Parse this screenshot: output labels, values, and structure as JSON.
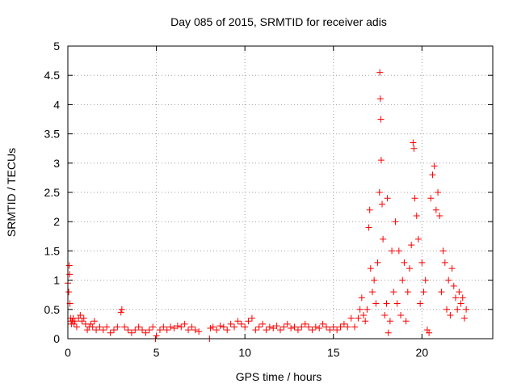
{
  "chart_data": {
    "type": "scatter",
    "title": "Day 085 of 2015, SRMTID for receiver adis",
    "xlabel": "GPS time / hours",
    "ylabel": "SRMTID / TECUs",
    "xlim": [
      0,
      24
    ],
    "ylim": [
      0,
      5
    ],
    "xticks": [
      0,
      5,
      10,
      15,
      20
    ],
    "xtick_labels": [
      "0",
      "5",
      "10",
      "15",
      "20"
    ],
    "yticks": [
      0,
      0.5,
      1,
      1.5,
      2,
      2.5,
      3,
      3.5,
      4,
      4.5,
      5
    ],
    "ytick_labels": [
      "0",
      "0.5",
      "1",
      "1.5",
      "2",
      "2.5",
      "3",
      "3.5",
      "4",
      "4.5",
      "5"
    ],
    "grid": true,
    "marker": "+",
    "series": [
      {
        "name": "SRMTID",
        "color": "#ff0000",
        "x": [
          0.0,
          0.05,
          0.08,
          0.1,
          0.12,
          0.15,
          0.18,
          0.2,
          0.25,
          0.3,
          0.35,
          0.4,
          0.5,
          0.6,
          0.7,
          0.8,
          0.9,
          1.0,
          1.1,
          1.2,
          1.3,
          1.4,
          1.5,
          1.6,
          1.8,
          2.0,
          2.2,
          2.4,
          2.6,
          2.8,
          3.0,
          3.05,
          3.2,
          3.4,
          3.6,
          3.8,
          4.0,
          4.2,
          4.4,
          4.6,
          4.8,
          4.95,
          5.0,
          5.2,
          5.4,
          5.6,
          5.8,
          6.0,
          6.2,
          6.4,
          6.6,
          6.8,
          7.0,
          7.2,
          7.4,
          8.0,
          8.05,
          8.2,
          8.4,
          8.6,
          8.8,
          9.0,
          9.2,
          9.4,
          9.6,
          9.8,
          10.0,
          10.2,
          10.4,
          10.6,
          10.8,
          11.0,
          11.2,
          11.4,
          11.6,
          11.8,
          12.0,
          12.2,
          12.4,
          12.6,
          12.8,
          13.0,
          13.2,
          13.4,
          13.6,
          13.8,
          14.0,
          14.2,
          14.4,
          14.6,
          14.8,
          15.0,
          15.2,
          15.4,
          15.6,
          15.8,
          16.0,
          16.2,
          16.4,
          16.5,
          16.6,
          16.7,
          16.8,
          16.9,
          17.0,
          17.05,
          17.1,
          17.2,
          17.3,
          17.4,
          17.5,
          17.6,
          17.62,
          17.65,
          17.68,
          17.7,
          17.75,
          17.8,
          17.9,
          18.0,
          18.05,
          18.1,
          18.2,
          18.3,
          18.4,
          18.5,
          18.6,
          18.7,
          18.8,
          18.9,
          19.0,
          19.1,
          19.2,
          19.3,
          19.4,
          19.5,
          19.55,
          19.6,
          19.7,
          19.8,
          19.9,
          20.0,
          20.1,
          20.2,
          20.3,
          20.4,
          20.5,
          20.6,
          20.7,
          20.8,
          20.9,
          21.0,
          21.1,
          21.2,
          21.3,
          21.4,
          21.5,
          21.6,
          21.7,
          21.8,
          21.9,
          22.0,
          22.1,
          22.2,
          22.3,
          22.4,
          22.5
        ],
        "y": [
          0.95,
          0.8,
          1.25,
          1.1,
          0.6,
          0.35,
          0.3,
          0.25,
          0.3,
          0.35,
          0.25,
          0.3,
          0.2,
          0.35,
          0.4,
          0.3,
          0.35,
          0.25,
          0.15,
          0.2,
          0.25,
          0.2,
          0.3,
          0.15,
          0.2,
          0.15,
          0.2,
          0.1,
          0.15,
          0.2,
          0.45,
          0.5,
          0.2,
          0.15,
          0.1,
          0.15,
          0.2,
          0.15,
          0.1,
          0.15,
          0.2,
          0.0,
          0.05,
          0.15,
          0.2,
          0.15,
          0.2,
          0.18,
          0.22,
          0.2,
          0.25,
          0.15,
          0.2,
          0.15,
          0.12,
          0.0,
          0.18,
          0.2,
          0.15,
          0.22,
          0.2,
          0.15,
          0.25,
          0.2,
          0.3,
          0.25,
          0.2,
          0.3,
          0.35,
          0.15,
          0.2,
          0.25,
          0.15,
          0.2,
          0.18,
          0.22,
          0.15,
          0.2,
          0.25,
          0.18,
          0.2,
          0.15,
          0.2,
          0.25,
          0.2,
          0.15,
          0.2,
          0.18,
          0.25,
          0.2,
          0.15,
          0.2,
          0.15,
          0.2,
          0.25,
          0.2,
          0.35,
          0.2,
          0.35,
          0.5,
          0.7,
          0.4,
          0.3,
          0.5,
          1.9,
          2.2,
          1.2,
          0.8,
          1.0,
          0.6,
          1.3,
          2.5,
          4.55,
          4.1,
          3.75,
          3.05,
          2.3,
          1.7,
          0.4,
          0.6,
          2.4,
          0.1,
          0.3,
          1.5,
          0.8,
          2.0,
          0.6,
          1.5,
          0.4,
          1.0,
          1.3,
          0.3,
          0.8,
          1.2,
          1.6,
          3.35,
          3.25,
          2.4,
          2.1,
          1.7,
          0.6,
          1.3,
          0.8,
          1.0,
          0.15,
          0.1,
          2.4,
          2.8,
          2.95,
          2.2,
          2.5,
          2.1,
          0.8,
          1.5,
          1.3,
          0.5,
          1.0,
          0.4,
          1.2,
          0.9,
          0.7,
          0.5,
          0.8,
          0.6,
          0.7,
          0.35,
          0.5
        ]
      }
    ]
  }
}
